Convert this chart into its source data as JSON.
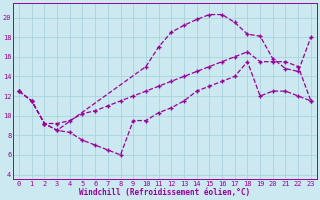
{
  "xlabel": "Windchill (Refroidissement éolien,°C)",
  "bg_color": "#cce8f0",
  "line_color": "#990099",
  "grid_color": "#aad4dd",
  "xlim": [
    -0.5,
    23.5
  ],
  "ylim": [
    3.5,
    21.5
  ],
  "xticks": [
    0,
    1,
    2,
    3,
    4,
    5,
    6,
    7,
    8,
    9,
    10,
    11,
    12,
    13,
    14,
    15,
    16,
    17,
    18,
    19,
    20,
    21,
    22,
    23
  ],
  "yticks": [
    4,
    6,
    8,
    10,
    12,
    14,
    16,
    18,
    20
  ],
  "line_top_x": [
    0,
    1,
    2,
    3,
    10,
    11,
    12,
    13,
    14,
    15,
    16,
    17,
    18,
    19,
    20,
    21,
    22,
    23
  ],
  "line_top_y": [
    12.5,
    11.5,
    9.2,
    8.5,
    15.0,
    17.0,
    18.5,
    19.2,
    19.8,
    20.3,
    20.3,
    19.5,
    18.3,
    18.1,
    15.8,
    14.8,
    14.5,
    18.0
  ],
  "line_mid_x": [
    0,
    1,
    2,
    3,
    4,
    5,
    6,
    7,
    8,
    9,
    10,
    11,
    12,
    13,
    14,
    15,
    16,
    17,
    18,
    19,
    20,
    21,
    22,
    23
  ],
  "line_mid_y": [
    12.5,
    11.5,
    9.2,
    9.2,
    9.5,
    10.2,
    10.5,
    11.0,
    11.5,
    12.0,
    12.5,
    13.0,
    13.5,
    14.0,
    14.5,
    15.0,
    15.5,
    16.0,
    16.5,
    15.5,
    15.5,
    15.5,
    15.0,
    11.5
  ],
  "line_bot_x": [
    0,
    1,
    2,
    3,
    4,
    5,
    6,
    7,
    8,
    9,
    10,
    11,
    12,
    13,
    14,
    15,
    16,
    17,
    18,
    19,
    20,
    21,
    22,
    23
  ],
  "line_bot_y": [
    12.5,
    11.5,
    9.2,
    8.5,
    8.3,
    7.5,
    7.0,
    6.5,
    6.0,
    9.5,
    9.5,
    10.3,
    10.8,
    11.5,
    12.5,
    13.0,
    13.5,
    14.0,
    15.5,
    12.0,
    12.5,
    12.5,
    12.0,
    11.5
  ]
}
